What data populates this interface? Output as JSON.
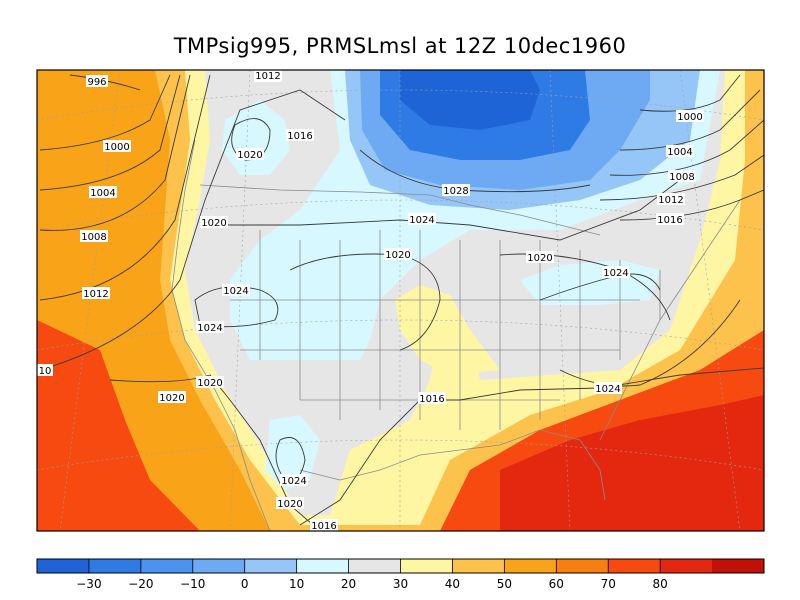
{
  "title": "TMPsig995, PRMSLmsl at 12Z  10dec1960",
  "colorbar": {
    "colors": [
      "#1e64d6",
      "#2f7be6",
      "#4a94ef",
      "#6eaaf4",
      "#96c6f8",
      "#d7f8ff",
      "#e6e6e6",
      "#fff6a4",
      "#fcc24c",
      "#f8a318",
      "#f67f10",
      "#f74a10",
      "#e42810",
      "#c01008"
    ],
    "ticks": [
      "-30",
      "-20",
      "-10",
      "0",
      "10",
      "20",
      "30",
      "40",
      "50",
      "60",
      "70",
      "80"
    ]
  },
  "zones": {
    "warm_outer": "#f8a318",
    "hot": "#f74a10",
    "very_hot": "#e42810",
    "orange_light": "#fcc24c",
    "yellow": "#fff6a4",
    "gray": "#e6e6e6",
    "pale_cyan": "#d7f8ff",
    "blue_light": "#96c6f8",
    "blue_mid": "#6eaaf4",
    "blue_deep": "#2f7be6",
    "blue_core": "#1e64d6"
  },
  "isobar_labels": [
    {
      "text": "996"
    },
    {
      "text": "1000"
    },
    {
      "text": "1004"
    },
    {
      "text": "1008"
    },
    {
      "text": "1012"
    },
    {
      "text": "1012"
    },
    {
      "text": "1016"
    },
    {
      "text": "1016"
    },
    {
      "text": "1016"
    },
    {
      "text": "1016"
    },
    {
      "text": "1016"
    },
    {
      "text": "1020"
    },
    {
      "text": "1020"
    },
    {
      "text": "1020"
    },
    {
      "text": "1020"
    },
    {
      "text": "1020"
    },
    {
      "text": "1020"
    },
    {
      "text": "1020"
    },
    {
      "text": "1024"
    },
    {
      "text": "1024"
    },
    {
      "text": "1024"
    },
    {
      "text": "1024"
    },
    {
      "text": "1024"
    },
    {
      "text": "1024"
    },
    {
      "text": "1028"
    },
    {
      "text": "1000"
    },
    {
      "text": "1004"
    },
    {
      "text": "1008"
    },
    {
      "text": "1012"
    },
    {
      "text": "10"
    }
  ]
}
